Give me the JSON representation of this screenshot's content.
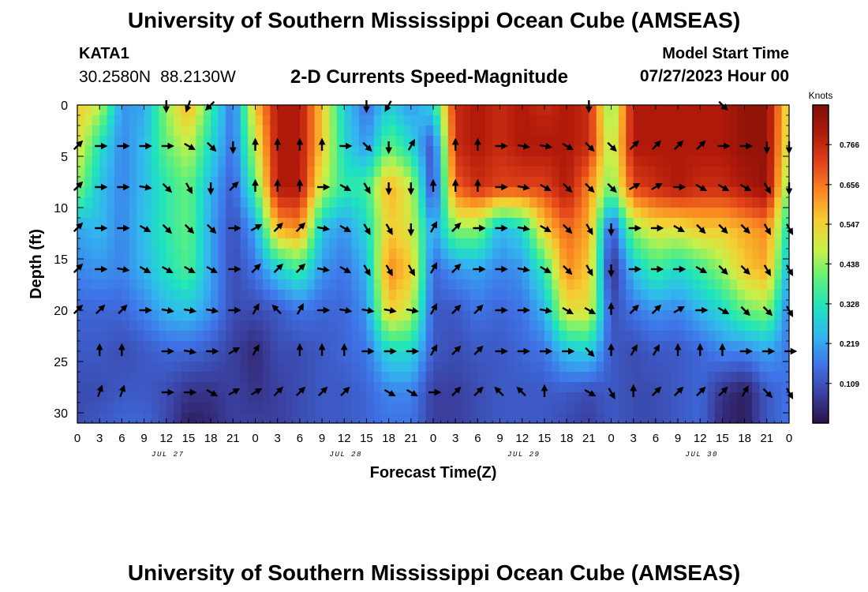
{
  "header": {
    "title": "University of Southern Mississippi Ocean Cube (AMSEAS)",
    "station": "KATA1",
    "latitude": "30.2580N",
    "longitude": "88.2130W",
    "subtitle": "2-D Currents Speed-Magnitude",
    "model_start_label": "Model Start Time",
    "model_start_value": "07/27/2023 Hour 00"
  },
  "footer": {
    "title": "University of Southern Mississippi Ocean Cube (AMSEAS)"
  },
  "colors": {
    "colormap": [
      "#2a1248",
      "#3a3f9e",
      "#3f73e8",
      "#33b5f0",
      "#1ee3c0",
      "#5ff07a",
      "#c8f04a",
      "#f6cd32",
      "#fa8a22",
      "#e2431a",
      "#b11a0a",
      "#7a0f08"
    ],
    "arrow": "#000000"
  },
  "chart_data": {
    "type": "heatmap",
    "xlabel": "Forecast Time(Z)",
    "ylabel": "Depth (ft)",
    "x_ticks": [
      0,
      3,
      6,
      9,
      12,
      15,
      18,
      21,
      24,
      27,
      30,
      33,
      36,
      39,
      42,
      45,
      48,
      51,
      54,
      57,
      60,
      63,
      66,
      69,
      72,
      75,
      78,
      81,
      84,
      87,
      90,
      93,
      96
    ],
    "x_tick_labels": [
      "0",
      "3",
      "6",
      "9",
      "12",
      "15",
      "18",
      "21",
      "0",
      "3",
      "6",
      "9",
      "12",
      "15",
      "18",
      "21",
      "0",
      "3",
      "6",
      "9",
      "12",
      "15",
      "18",
      "21",
      "0",
      "3",
      "6",
      "9",
      "12",
      "15",
      "18",
      "21",
      "0"
    ],
    "date_labels": [
      {
        "hour": 12,
        "label": "JUL 27"
      },
      {
        "hour": 36,
        "label": "JUL 28"
      },
      {
        "hour": 60,
        "label": "JUL 29"
      },
      {
        "hour": 84,
        "label": "JUL 30"
      }
    ],
    "xlim": [
      0,
      96
    ],
    "ylim": [
      31,
      0
    ],
    "y_ticks": [
      0,
      5,
      10,
      15,
      20,
      25,
      30
    ],
    "y_tick_labels": [
      "0",
      "5",
      "10",
      "15",
      "20",
      "25",
      "30"
    ],
    "colorbar": {
      "label": "Knots",
      "range": [
        0.0,
        0.875
      ],
      "ticks": [
        0.109,
        0.219,
        0.328,
        0.438,
        0.547,
        0.656,
        0.766
      ],
      "tick_labels": [
        "0.109",
        "0.219",
        "0.328",
        "0.438",
        "0.547",
        "0.656",
        "0.766"
      ]
    },
    "speed_depths": [
      0,
      4,
      8,
      12,
      16,
      20,
      24,
      28,
      31
    ],
    "speed_hours": [
      0,
      3,
      6,
      9,
      12,
      15,
      18,
      21,
      24,
      27,
      30,
      33,
      36,
      39,
      42,
      45,
      48,
      51,
      54,
      57,
      60,
      63,
      66,
      69,
      72,
      75,
      78,
      81,
      84,
      87,
      90,
      93,
      96
    ],
    "speed_knots": [
      [
        0.56,
        0.48,
        0.2,
        0.22,
        0.44,
        0.6,
        0.36,
        0.15,
        0.56,
        0.8,
        0.8,
        0.56,
        0.28,
        0.15,
        0.28,
        0.2,
        0.3,
        0.76,
        0.8,
        0.76,
        0.8,
        0.76,
        0.8,
        0.76,
        0.4,
        0.8,
        0.8,
        0.8,
        0.8,
        0.8,
        0.84,
        0.84,
        0.5
      ],
      [
        0.52,
        0.32,
        0.18,
        0.25,
        0.4,
        0.48,
        0.3,
        0.15,
        0.48,
        0.8,
        0.8,
        0.56,
        0.3,
        0.2,
        0.4,
        0.3,
        0.1,
        0.76,
        0.8,
        0.76,
        0.8,
        0.8,
        0.8,
        0.76,
        0.44,
        0.8,
        0.8,
        0.8,
        0.8,
        0.8,
        0.84,
        0.84,
        0.48
      ],
      [
        0.44,
        0.26,
        0.18,
        0.25,
        0.34,
        0.4,
        0.24,
        0.12,
        0.38,
        0.8,
        0.8,
        0.48,
        0.34,
        0.36,
        0.6,
        0.48,
        0.08,
        0.68,
        0.76,
        0.72,
        0.72,
        0.72,
        0.8,
        0.64,
        0.4,
        0.72,
        0.76,
        0.8,
        0.76,
        0.76,
        0.8,
        0.84,
        0.4
      ],
      [
        0.22,
        0.25,
        0.18,
        0.26,
        0.34,
        0.4,
        0.22,
        0.1,
        0.22,
        0.6,
        0.64,
        0.26,
        0.2,
        0.3,
        0.56,
        0.5,
        0.2,
        0.44,
        0.44,
        0.24,
        0.3,
        0.56,
        0.68,
        0.6,
        0.1,
        0.44,
        0.52,
        0.52,
        0.56,
        0.56,
        0.6,
        0.64,
        0.3
      ],
      [
        0.18,
        0.2,
        0.18,
        0.24,
        0.32,
        0.38,
        0.22,
        0.1,
        0.16,
        0.28,
        0.36,
        0.2,
        0.16,
        0.24,
        0.64,
        0.56,
        0.14,
        0.2,
        0.22,
        0.18,
        0.2,
        0.34,
        0.64,
        0.56,
        0.04,
        0.26,
        0.36,
        0.3,
        0.36,
        0.44,
        0.56,
        0.6,
        0.22
      ],
      [
        0.14,
        0.14,
        0.14,
        0.18,
        0.24,
        0.26,
        0.2,
        0.1,
        0.1,
        0.12,
        0.16,
        0.14,
        0.14,
        0.2,
        0.56,
        0.48,
        0.12,
        0.12,
        0.16,
        0.14,
        0.16,
        0.24,
        0.52,
        0.52,
        0.1,
        0.16,
        0.2,
        0.18,
        0.24,
        0.3,
        0.4,
        0.44,
        0.16
      ],
      [
        0.12,
        0.12,
        0.1,
        0.12,
        0.14,
        0.14,
        0.12,
        0.08,
        0.04,
        0.1,
        0.1,
        0.12,
        0.14,
        0.16,
        0.3,
        0.3,
        0.12,
        0.1,
        0.12,
        0.12,
        0.14,
        0.16,
        0.26,
        0.28,
        0.12,
        0.1,
        0.12,
        0.12,
        0.14,
        0.18,
        0.18,
        0.22,
        0.16
      ],
      [
        0.1,
        0.1,
        0.12,
        0.12,
        0.1,
        0.06,
        0.06,
        0.08,
        0.06,
        0.08,
        0.1,
        0.12,
        0.12,
        0.14,
        0.18,
        0.18,
        0.08,
        0.08,
        0.1,
        0.12,
        0.12,
        0.12,
        0.12,
        0.1,
        0.12,
        0.1,
        0.1,
        0.12,
        0.14,
        0.06,
        0.02,
        0.12,
        0.16
      ],
      [
        0.1,
        0.12,
        0.14,
        0.14,
        0.1,
        0.02,
        0.04,
        0.08,
        0.08,
        0.08,
        0.1,
        0.12,
        0.12,
        0.14,
        0.16,
        0.16,
        0.08,
        0.08,
        0.1,
        0.12,
        0.12,
        0.12,
        0.1,
        0.08,
        0.12,
        0.1,
        0.1,
        0.12,
        0.14,
        0.04,
        0.02,
        0.12,
        0.16
      ]
    ],
    "vector_depths": [
      0,
      4,
      8,
      12,
      16,
      20,
      24,
      28
    ],
    "vector_hours": [
      0,
      3,
      6,
      9,
      12,
      15,
      18,
      21,
      24,
      27,
      30,
      33,
      36,
      39,
      42,
      45,
      48,
      51,
      54,
      57,
      60,
      63,
      66,
      69,
      72,
      75,
      78,
      81,
      84,
      87,
      90,
      93,
      96
    ],
    "vector_direction_deg": [
      [
        null,
        null,
        null,
        null,
        180,
        200,
        225,
        null,
        null,
        null,
        null,
        null,
        null,
        180,
        210,
        null,
        null,
        null,
        null,
        null,
        null,
        null,
        null,
        180,
        null,
        null,
        null,
        null,
        null,
        135,
        null,
        null,
        null
      ],
      [
        45,
        90,
        90,
        90,
        90,
        120,
        135,
        180,
        0,
        0,
        0,
        0,
        90,
        135,
        180,
        30,
        null,
        0,
        0,
        90,
        100,
        100,
        120,
        135,
        135,
        45,
        45,
        45,
        45,
        90,
        90,
        180,
        180
      ],
      [
        45,
        90,
        90,
        100,
        135,
        150,
        180,
        45,
        0,
        0,
        0,
        90,
        120,
        150,
        180,
        180,
        0,
        0,
        0,
        90,
        100,
        120,
        135,
        135,
        135,
        60,
        60,
        90,
        120,
        120,
        120,
        150,
        180
      ],
      [
        45,
        90,
        90,
        120,
        135,
        135,
        135,
        90,
        60,
        45,
        45,
        100,
        120,
        150,
        150,
        180,
        30,
        45,
        90,
        90,
        100,
        120,
        135,
        150,
        180,
        90,
        90,
        120,
        135,
        135,
        135,
        150,
        150
      ],
      [
        45,
        90,
        100,
        120,
        120,
        120,
        120,
        90,
        45,
        45,
        45,
        100,
        120,
        150,
        150,
        150,
        30,
        45,
        90,
        90,
        100,
        120,
        135,
        150,
        180,
        90,
        90,
        90,
        120,
        135,
        135,
        150,
        150
      ],
      [
        45,
        45,
        45,
        90,
        100,
        100,
        100,
        90,
        30,
        315,
        30,
        90,
        100,
        100,
        100,
        100,
        30,
        45,
        45,
        90,
        90,
        100,
        120,
        120,
        0,
        45,
        45,
        60,
        90,
        120,
        135,
        135,
        150
      ],
      [
        null,
        0,
        0,
        null,
        90,
        100,
        90,
        60,
        30,
        null,
        0,
        0,
        0,
        90,
        90,
        90,
        30,
        45,
        45,
        90,
        90,
        90,
        90,
        135,
        0,
        30,
        30,
        0,
        0,
        0,
        90,
        90,
        90
      ],
      [
        null,
        20,
        20,
        null,
        90,
        90,
        120,
        60,
        60,
        45,
        45,
        45,
        45,
        null,
        120,
        120,
        90,
        45,
        45,
        315,
        315,
        0,
        null,
        120,
        150,
        0,
        45,
        45,
        45,
        45,
        30,
        135,
        150
      ]
    ]
  }
}
